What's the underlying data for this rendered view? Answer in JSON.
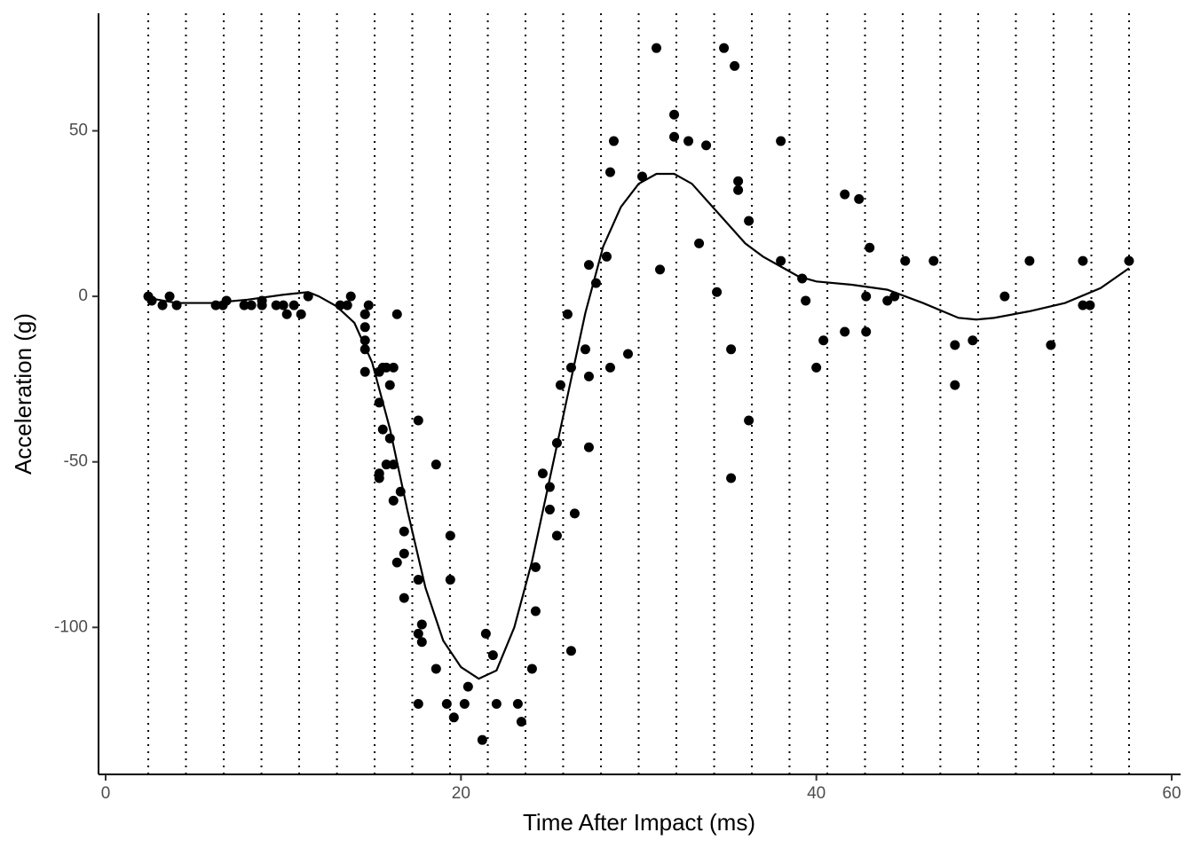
{
  "chart_data": {
    "type": "scatter",
    "xlabel": "Time After Impact (ms)",
    "ylabel": "Acceleration (g)",
    "xlim": [
      -0.4,
      60.5
    ],
    "ylim": [
      -144.4,
      85.5
    ],
    "xticks": [
      0,
      20,
      40,
      60
    ],
    "yticks": [
      -100,
      -50,
      0,
      50
    ],
    "color": "#000000",
    "x": [
      2.4,
      2.6,
      3.2,
      3.6,
      4.0,
      6.2,
      6.6,
      6.8,
      7.8,
      8.2,
      8.8,
      8.8,
      9.6,
      10.0,
      10.2,
      10.6,
      11.0,
      11.4,
      13.2,
      13.6,
      13.8,
      14.6,
      14.6,
      14.6,
      14.6,
      14.6,
      14.6,
      14.8,
      15.4,
      15.4,
      15.4,
      15.4,
      15.6,
      15.6,
      15.8,
      15.8,
      16.0,
      16.0,
      16.2,
      16.2,
      16.2,
      16.4,
      16.4,
      16.6,
      16.8,
      16.8,
      16.8,
      17.6,
      17.6,
      17.6,
      17.6,
      17.8,
      17.8,
      18.6,
      18.6,
      19.2,
      19.4,
      19.4,
      19.6,
      20.2,
      20.4,
      21.2,
      21.4,
      21.8,
      22.0,
      23.2,
      23.4,
      24.0,
      24.2,
      24.2,
      24.6,
      25.0,
      25.0,
      25.4,
      25.4,
      25.6,
      26.0,
      26.2,
      26.2,
      26.4,
      27.0,
      27.2,
      27.2,
      27.2,
      27.6,
      28.2,
      28.4,
      28.4,
      28.6,
      29.4,
      30.2,
      31.0,
      31.2,
      32.0,
      32.0,
      32.8,
      33.4,
      33.8,
      34.4,
      34.8,
      35.2,
      35.2,
      35.4,
      35.6,
      35.6,
      36.2,
      36.2,
      38.0,
      38.0,
      39.2,
      39.4,
      40.0,
      40.4,
      41.6,
      41.6,
      42.4,
      42.8,
      42.8,
      43.0,
      44.0,
      44.4,
      45.0,
      46.6,
      47.8,
      47.8,
      48.8,
      50.6,
      52.0,
      53.2,
      55.0,
      55.0,
      55.4,
      57.6
    ],
    "values": [
      0.0,
      -1.3,
      -2.7,
      0.0,
      -2.7,
      -2.7,
      -2.7,
      -1.3,
      -2.7,
      -2.7,
      -1.3,
      -2.7,
      -2.7,
      -2.7,
      -5.4,
      -2.7,
      -5.4,
      0.0,
      -2.7,
      -2.7,
      0.0,
      -13.3,
      -5.4,
      -5.4,
      -9.3,
      -16.0,
      -22.8,
      -2.7,
      -22.8,
      -32.1,
      -53.5,
      -54.9,
      -40.2,
      -21.5,
      -21.5,
      -50.8,
      -42.9,
      -26.8,
      -21.5,
      -50.8,
      -61.7,
      -5.4,
      -80.4,
      -59.0,
      -71.0,
      -91.1,
      -77.7,
      -37.5,
      -85.6,
      -123.1,
      -101.9,
      -99.1,
      -104.4,
      -112.5,
      -50.8,
      -123.1,
      -85.6,
      -72.3,
      -127.2,
      -123.1,
      -117.9,
      -134.0,
      -101.9,
      -108.4,
      -123.1,
      -123.1,
      -128.5,
      -112.5,
      -95.1,
      -81.8,
      -53.5,
      -64.4,
      -57.6,
      -72.3,
      -44.3,
      -26.8,
      -5.4,
      -107.1,
      -21.5,
      -65.6,
      -16.0,
      -45.6,
      -24.2,
      9.5,
      4.0,
      12.0,
      -21.5,
      37.5,
      46.9,
      -17.4,
      36.2,
      75.0,
      8.1,
      54.9,
      48.2,
      46.9,
      16.0,
      45.6,
      1.3,
      75.0,
      -16.0,
      -54.9,
      69.6,
      34.8,
      32.1,
      -37.5,
      22.8,
      46.9,
      10.7,
      5.4,
      -1.3,
      -21.5,
      -13.3,
      30.8,
      -10.7,
      29.4,
      0.0,
      -10.7,
      14.7,
      -1.3,
      0.0,
      10.7,
      10.7,
      -26.8,
      -14.7,
      -13.3,
      0.0,
      10.7,
      -14.7,
      -2.7,
      10.7,
      -2.7,
      10.7
    ],
    "smooth": {
      "x": [
        2.4,
        4,
        6,
        8,
        10,
        11.4,
        12,
        13,
        14,
        15,
        16,
        17,
        18,
        19,
        20,
        21,
        22,
        23,
        24,
        25,
        26,
        27,
        28,
        29,
        30,
        31,
        32,
        33,
        34,
        35,
        36,
        37,
        38,
        39,
        40,
        42,
        44,
        46,
        48,
        49,
        50,
        52,
        54,
        56,
        57.6
      ],
      "values": [
        -0.5,
        -2,
        -2,
        -1,
        0.5,
        1.3,
        0,
        -3,
        -8,
        -20,
        -40,
        -65,
        -88,
        -104,
        -112,
        -115.5,
        -113,
        -100,
        -80,
        -55,
        -30,
        -5,
        15,
        27,
        34,
        37,
        37,
        34,
        28,
        22,
        16,
        12,
        9,
        6,
        4.5,
        3.5,
        2,
        -2,
        -6.5,
        -7,
        -6.5,
        -4.5,
        -2,
        2.5,
        8.5
      ]
    },
    "vlines": [
      2.4,
      4.52,
      6.65,
      8.77,
      10.89,
      13.02,
      15.14,
      17.26,
      19.38,
      21.51,
      23.63,
      25.75,
      27.88,
      30.0,
      32.12,
      34.25,
      36.37,
      38.49,
      40.62,
      42.74,
      44.86,
      46.98,
      49.11,
      51.23,
      53.35,
      55.48,
      57.6
    ]
  }
}
